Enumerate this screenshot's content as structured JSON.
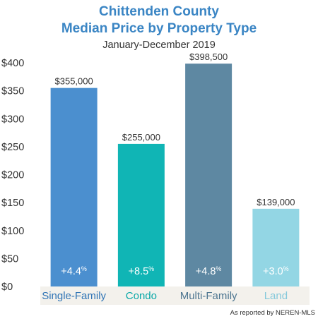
{
  "chart_data": {
    "type": "bar",
    "title_line1": "Chittenden County",
    "title_line2": "Median Price by Property Type",
    "subtitle": "January-December 2019",
    "categories": [
      "Single-Family",
      "Condo",
      "Multi-Family",
      "Land"
    ],
    "values": [
      355000,
      255000,
      398500,
      139000
    ],
    "value_labels": [
      "$355,000",
      "$255,000",
      "$398,500",
      "$139,000"
    ],
    "changes": [
      "+4.4",
      "+8.5",
      "+4.8",
      "+3.0"
    ],
    "change_unit": "%",
    "yticks": [
      "$0",
      "$50",
      "$100",
      "$150",
      "$200",
      "$250",
      "$300",
      "$350",
      "$400"
    ],
    "ylim": [
      0,
      400000
    ],
    "tick_step": 50000,
    "colors": {
      "bars": [
        "#4b8fcf",
        "#10b5b5",
        "#5e88a2",
        "#93d6e4"
      ],
      "category_labels": [
        "#2f74b5",
        "#0aa8a8",
        "#4d7590",
        "#85c9db"
      ],
      "title": "#3a85c4",
      "baseline_band": "#f3f1ec"
    },
    "source": "As reported by NEREN-MLS"
  }
}
